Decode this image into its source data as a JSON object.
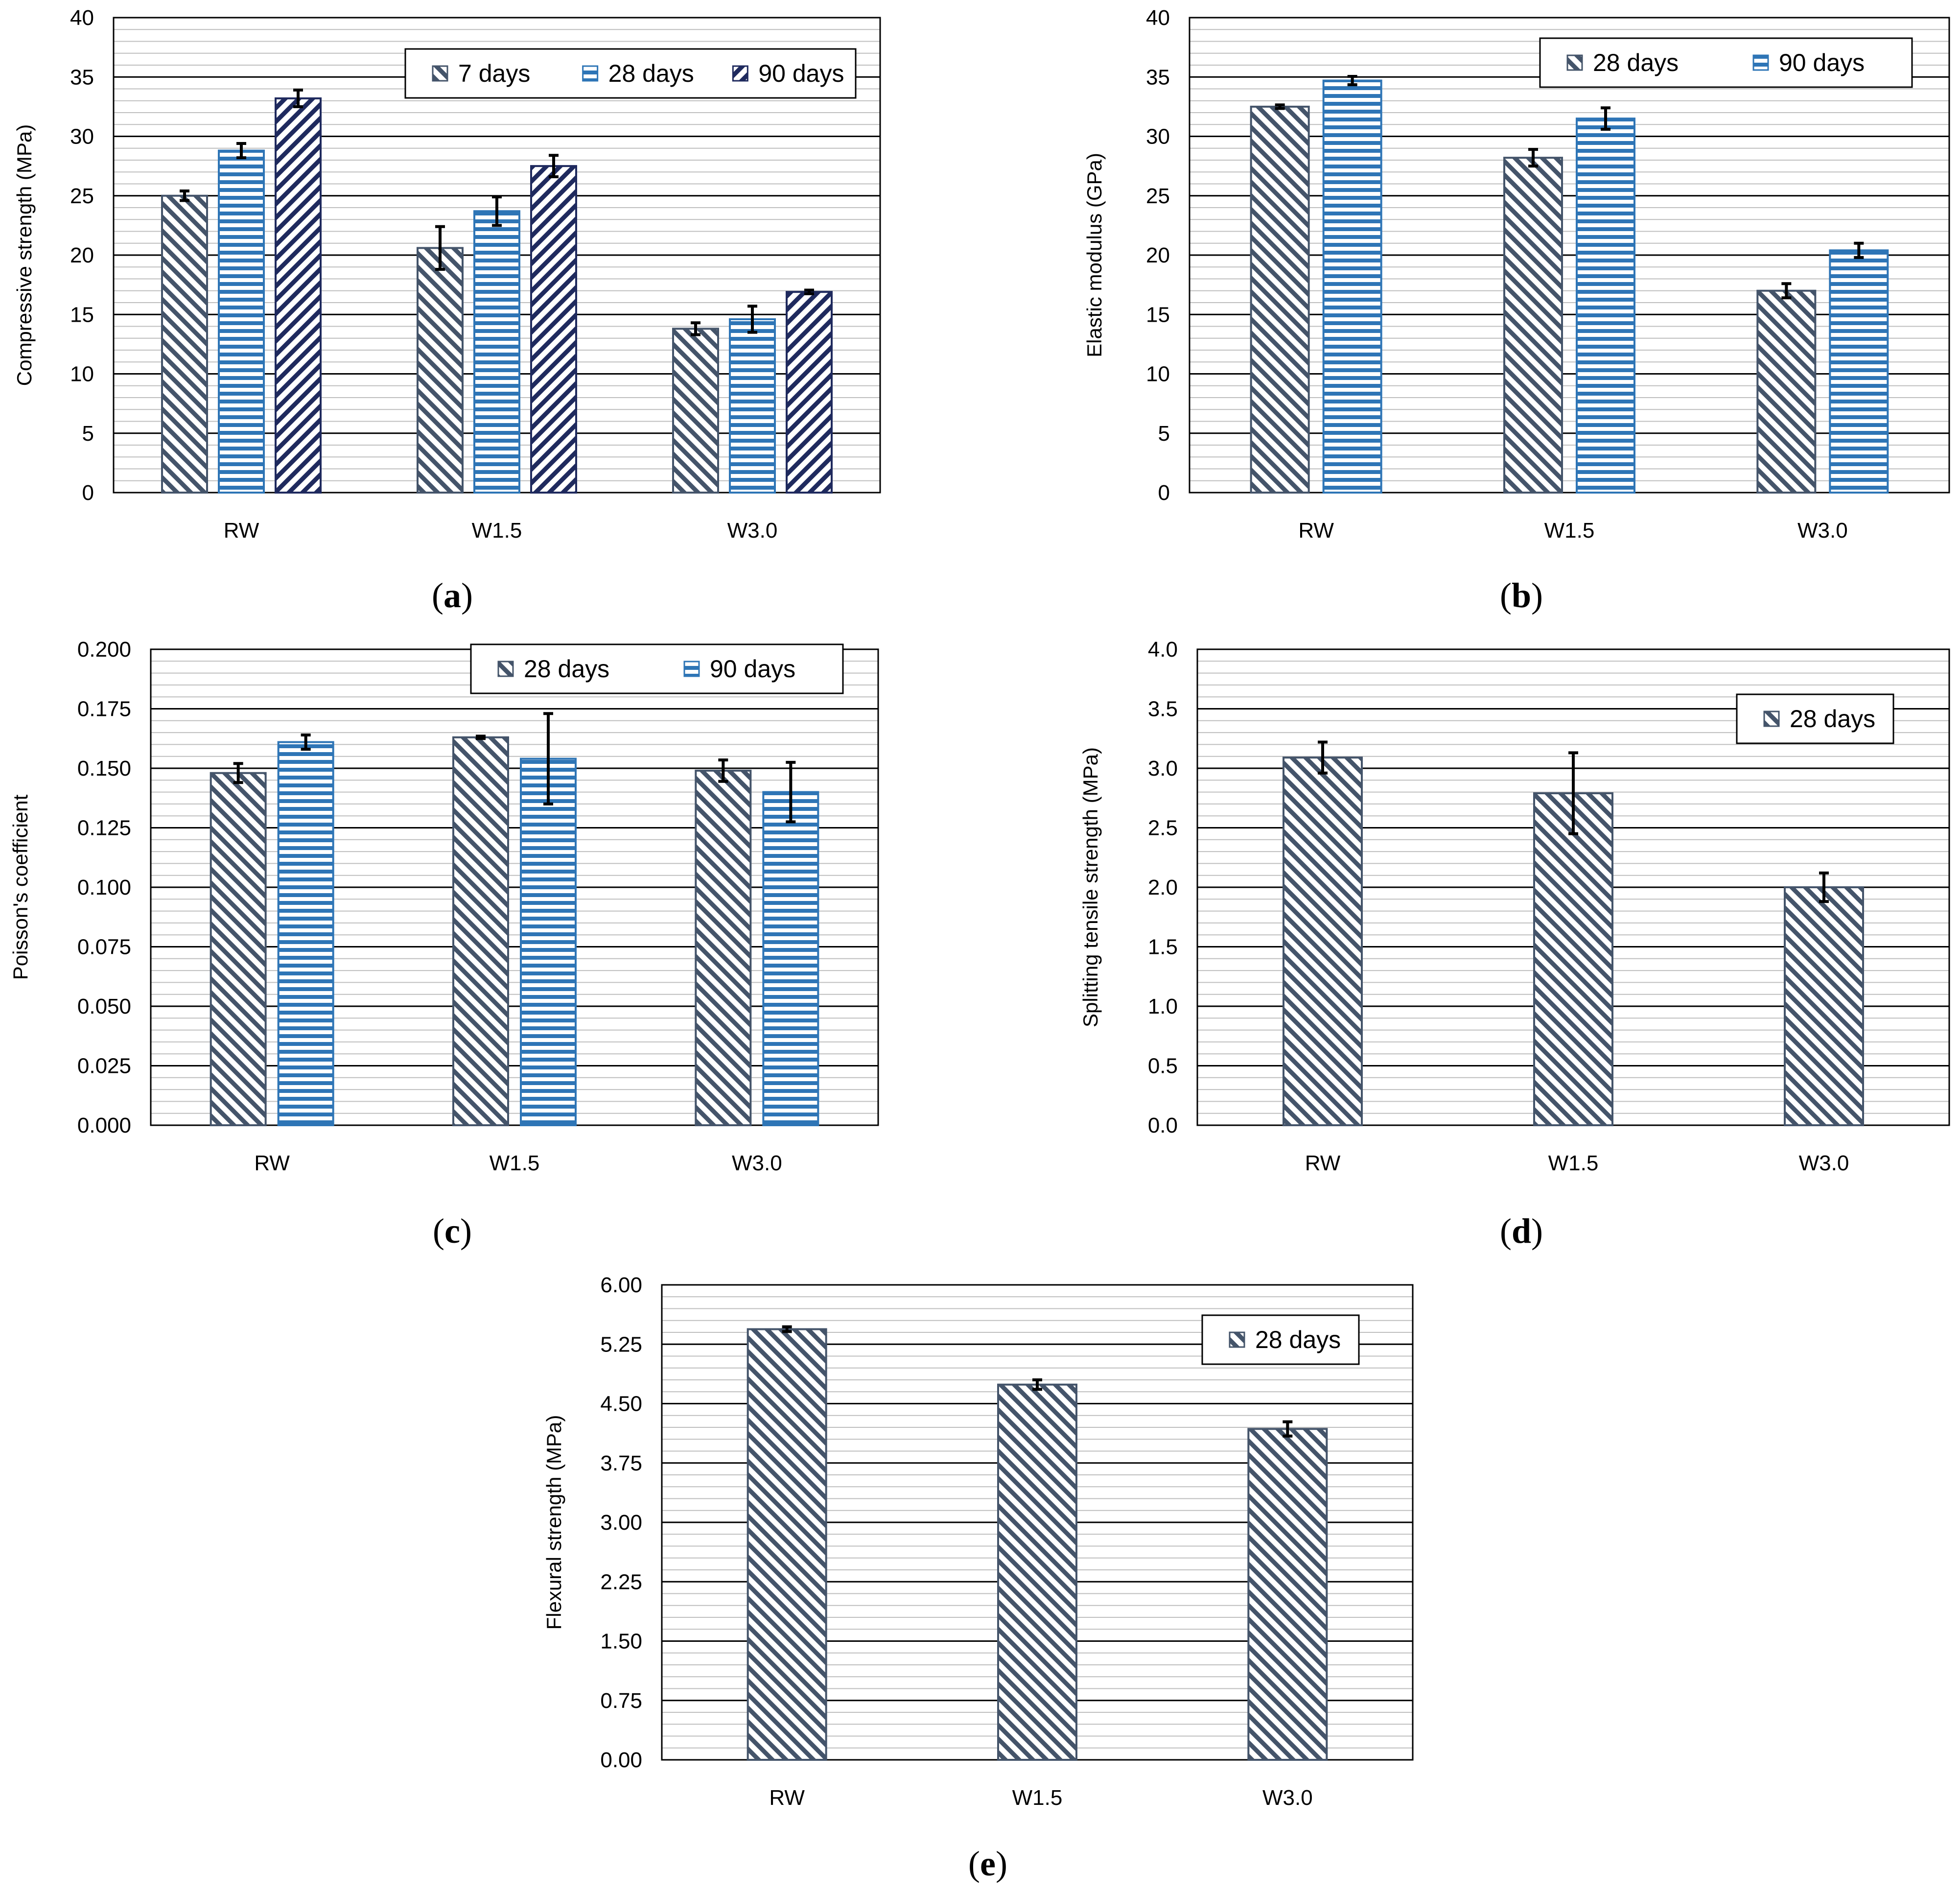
{
  "colors": {
    "dark_slate": "#44546a",
    "light_blue": "#2e75b6",
    "navy": "#1f2a5e",
    "grid_major": "#000000",
    "grid_minor": "#bfbfbf",
    "plot_bg": "#ffffff"
  },
  "chart_data": [
    {
      "id": "a",
      "type": "bar",
      "caption_letter": "a",
      "ylabel": "Compressive strength (MPa)",
      "categories": [
        "RW",
        "W1.5",
        "W3.0"
      ],
      "ylim": [
        0,
        40
      ],
      "yticks": [
        "0",
        "5",
        "10",
        "15",
        "20",
        "25",
        "30",
        "35",
        "40"
      ],
      "legend_position": "top-right",
      "series": [
        {
          "name": "7 days",
          "pattern": "diag",
          "color": "#44546a",
          "values": [
            25.0,
            20.6,
            13.8
          ],
          "errors": [
            0.4,
            1.8,
            0.5
          ]
        },
        {
          "name": "28 days",
          "pattern": "horiz",
          "color": "#2e75b6",
          "values": [
            28.8,
            23.7,
            14.6
          ],
          "errors": [
            0.6,
            1.2,
            1.1
          ]
        },
        {
          "name": "90 days",
          "pattern": "diagfwd",
          "color": "#1f2a5e",
          "values": [
            33.2,
            27.5,
            16.9
          ],
          "errors": [
            0.7,
            0.9,
            0.15
          ]
        }
      ]
    },
    {
      "id": "b",
      "type": "bar",
      "caption_letter": "b",
      "ylabel": "Elastic modulus (GPa)",
      "categories": [
        "RW",
        "W1.5",
        "W3.0"
      ],
      "ylim": [
        0,
        40
      ],
      "yticks": [
        "0",
        "5",
        "10",
        "15",
        "20",
        "25",
        "30",
        "35",
        "40"
      ],
      "legend_position": "top-right",
      "series": [
        {
          "name": "28 days",
          "pattern": "diag",
          "color": "#44546a",
          "values": [
            32.5,
            28.2,
            17.0
          ],
          "errors": [
            0.15,
            0.7,
            0.6
          ]
        },
        {
          "name": "90 days",
          "pattern": "horiz",
          "color": "#2e75b6",
          "values": [
            34.7,
            31.5,
            20.4
          ],
          "errors": [
            0.35,
            0.9,
            0.6
          ]
        }
      ]
    },
    {
      "id": "c",
      "type": "bar",
      "caption_letter": "c",
      "ylabel": "Poisson's coefficient",
      "categories": [
        "RW",
        "W1.5",
        "W3.0"
      ],
      "ylim": [
        0,
        0.2
      ],
      "yticks": [
        "0.000",
        "0.025",
        "0.050",
        "0.075",
        "0.100",
        "0.125",
        "0.150",
        "0.175",
        "0.200"
      ],
      "legend_position": "top-right",
      "series": [
        {
          "name": "28 days",
          "pattern": "diag",
          "color": "#44546a",
          "values": [
            0.148,
            0.163,
            0.149
          ],
          "errors": [
            0.004,
            0.0005,
            0.0045
          ]
        },
        {
          "name": "90 days",
          "pattern": "horiz",
          "color": "#2e75b6",
          "values": [
            0.161,
            0.154,
            0.14
          ],
          "errors": [
            0.003,
            0.019,
            0.0125
          ]
        }
      ]
    },
    {
      "id": "d",
      "type": "bar",
      "caption_letter": "d",
      "ylabel": "Splitting tensile strength (MPa)",
      "categories": [
        "RW",
        "W1.5",
        "W3.0"
      ],
      "ylim": [
        0,
        4
      ],
      "yticks": [
        "0.0",
        "0.5",
        "1.0",
        "1.5",
        "2.0",
        "2.5",
        "3.0",
        "3.5",
        "4.0"
      ],
      "legend_position": "top-right",
      "series": [
        {
          "name": "28 days",
          "pattern": "diag",
          "color": "#44546a",
          "values": [
            3.09,
            2.79,
            2.0
          ],
          "errors": [
            0.13,
            0.34,
            0.12
          ]
        }
      ]
    },
    {
      "id": "e",
      "type": "bar",
      "caption_letter": "e",
      "ylabel": "Flexural strength (MPa)",
      "categories": [
        "RW",
        "W1.5",
        "W3.0"
      ],
      "ylim": [
        0,
        6
      ],
      "yticks": [
        "0.00",
        "0.75",
        "1.50",
        "2.25",
        "3.00",
        "3.75",
        "4.50",
        "5.25",
        "6.00"
      ],
      "legend_position": "top-right",
      "series": [
        {
          "name": "28 days",
          "pattern": "diag",
          "color": "#44546a",
          "values": [
            5.44,
            4.74,
            4.18
          ],
          "errors": [
            0.03,
            0.06,
            0.09
          ]
        }
      ]
    }
  ]
}
